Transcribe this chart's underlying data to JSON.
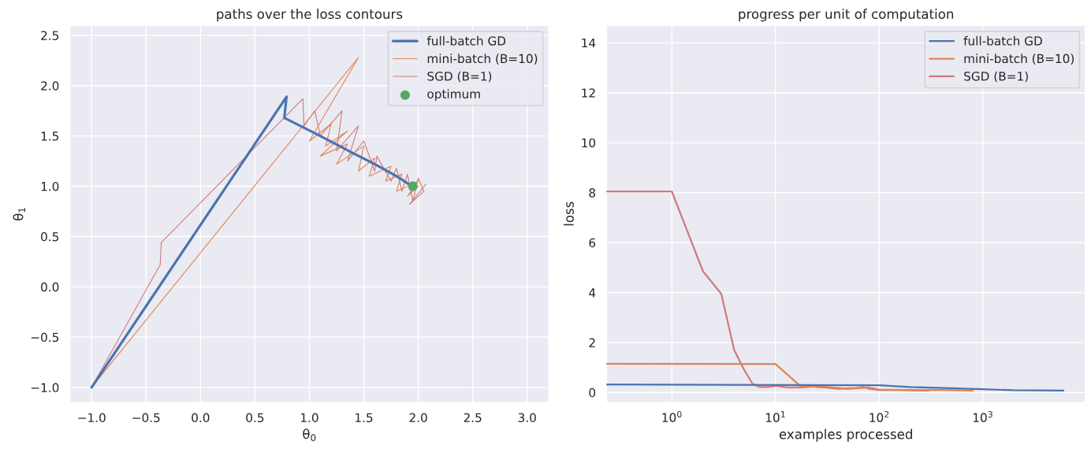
{
  "chart_data": [
    {
      "type": "line",
      "title": "paths over the loss contours",
      "xlabel": "θ$_{0}$",
      "ylabel": "θ$_{1}$",
      "xlim": [
        -1.2,
        3.2
      ],
      "ylim": [
        -1.15,
        2.6
      ],
      "xticks": [
        {
          "value": -1.0,
          "label": "−1.0"
        },
        {
          "value": -0.5,
          "label": "−0.5"
        },
        {
          "value": 0.0,
          "label": "0.0"
        },
        {
          "value": 0.5,
          "label": "0.5"
        },
        {
          "value": 1.0,
          "label": "1.0"
        },
        {
          "value": 1.5,
          "label": "1.5"
        },
        {
          "value": 2.0,
          "label": "2.0"
        },
        {
          "value": 2.5,
          "label": "2.5"
        },
        {
          "value": 3.0,
          "label": "3.0"
        }
      ],
      "yticks": [
        {
          "value": -1.0,
          "label": "−1.0"
        },
        {
          "value": -0.5,
          "label": "−0.5"
        },
        {
          "value": 0.0,
          "label": "0.0"
        },
        {
          "value": 0.5,
          "label": "0.5"
        },
        {
          "value": 1.0,
          "label": "1.0"
        },
        {
          "value": 1.5,
          "label": "1.5"
        },
        {
          "value": 2.0,
          "label": "2.0"
        },
        {
          "value": 2.5,
          "label": "2.5"
        }
      ],
      "grid": true,
      "legend": "top right",
      "series": [
        {
          "name": "full-batch GD",
          "color": "#4c72b0",
          "x": [
            -1,
            0.79,
            0.77,
            1.1,
            1.4,
            1.6,
            1.8,
            1.9,
            1.95
          ],
          "values": [
            -1,
            1.89,
            1.68,
            1.5,
            1.33,
            1.22,
            1.1,
            1.03,
            1.0
          ]
        },
        {
          "name": "mini-batch (B=10)",
          "color": "#dd8452",
          "x": [
            -1,
            1.45,
            1.0,
            1.2,
            1.15,
            1.35,
            1.1,
            1.35,
            1.25,
            1.5,
            1.45,
            1.6,
            1.55,
            1.75,
            1.7,
            1.85,
            1.8,
            2.0,
            1.9,
            2.0,
            1.95,
            1.98
          ],
          "values": [
            -1,
            2.28,
            1.45,
            1.62,
            1.4,
            1.55,
            1.3,
            1.42,
            1.22,
            1.4,
            1.15,
            1.28,
            1.1,
            1.2,
            1.05,
            1.12,
            0.95,
            1.05,
            0.9,
            1.0,
            0.95,
            1.02
          ]
        },
        {
          "name": "SGD (B=1)",
          "color": "#d07a7d",
          "x": [
            -1,
            -0.37,
            -0.36,
            0.94,
            0.95,
            1.05,
            1.1,
            1.3,
            1.25,
            1.45,
            1.35,
            1.5,
            1.6,
            1.62,
            1.75,
            1.8,
            1.85,
            1.9,
            1.95,
            2.0,
            2.05,
            1.92,
            2.07,
            1.98
          ],
          "values": [
            -1,
            0.22,
            0.44,
            1.87,
            1.6,
            1.75,
            1.5,
            1.75,
            1.35,
            1.6,
            1.25,
            1.45,
            1.15,
            1.3,
            1.05,
            1.18,
            0.95,
            1.12,
            0.85,
            1.08,
            0.95,
            0.82,
            1.02,
            0.9
          ]
        },
        {
          "name": "optimum",
          "type": "scatter",
          "marker": "circle",
          "color": "#55a868",
          "x": [
            1.95
          ],
          "values": [
            1.0
          ]
        }
      ]
    },
    {
      "type": "line",
      "title": "progress per unit of computation",
      "xlabel": "examples processed",
      "ylabel": "loss",
      "log": "x",
      "xlim": [
        0.234,
        9800
      ],
      "ylim": [
        -0.4,
        14.7
      ],
      "xticks": [
        {
          "value": 1,
          "label": "10$^{0}$"
        },
        {
          "value": 10,
          "label": "10$^{1}$"
        },
        {
          "value": 100,
          "label": "10$^{2}$"
        },
        {
          "value": 1000,
          "label": "10$^{3}$"
        }
      ],
      "yticks": [
        0,
        2,
        4,
        6,
        8,
        10,
        12,
        14
      ],
      "grid": true,
      "legend": "top right",
      "series": [
        {
          "name": "full-batch GD",
          "color": "#4c72b0",
          "x": [
            0.234,
            100,
            200,
            500,
            1000,
            2000,
            6000
          ],
          "values": [
            0.32,
            0.29,
            0.22,
            0.17,
            0.13,
            0.09,
            0.08
          ]
        },
        {
          "name": "mini-batch (B=10)",
          "color": "#dd8452",
          "x": [
            0.234,
            10,
            18,
            25,
            35,
            50,
            80,
            100,
            200,
            400,
            800
          ],
          "values": [
            1.15,
            1.14,
            0.2,
            0.25,
            0.2,
            0.15,
            0.2,
            0.12,
            0.1,
            0.1,
            0.08
          ]
        },
        {
          "name": "SGD (B=1)",
          "color": "#d07a7d",
          "x": [
            0.234,
            1,
            2,
            3,
            4,
            5,
            6,
            7,
            9,
            10,
            13,
            18,
            21,
            25,
            30,
            40,
            60,
            70,
            80,
            100,
            150,
            300
          ],
          "values": [
            8.05,
            8.05,
            4.85,
            3.95,
            1.7,
            0.9,
            0.35,
            0.22,
            0.23,
            0.27,
            0.2,
            0.2,
            0.3,
            0.22,
            0.2,
            0.15,
            0.18,
            0.22,
            0.15,
            0.1,
            0.1,
            0.08
          ]
        }
      ]
    }
  ]
}
